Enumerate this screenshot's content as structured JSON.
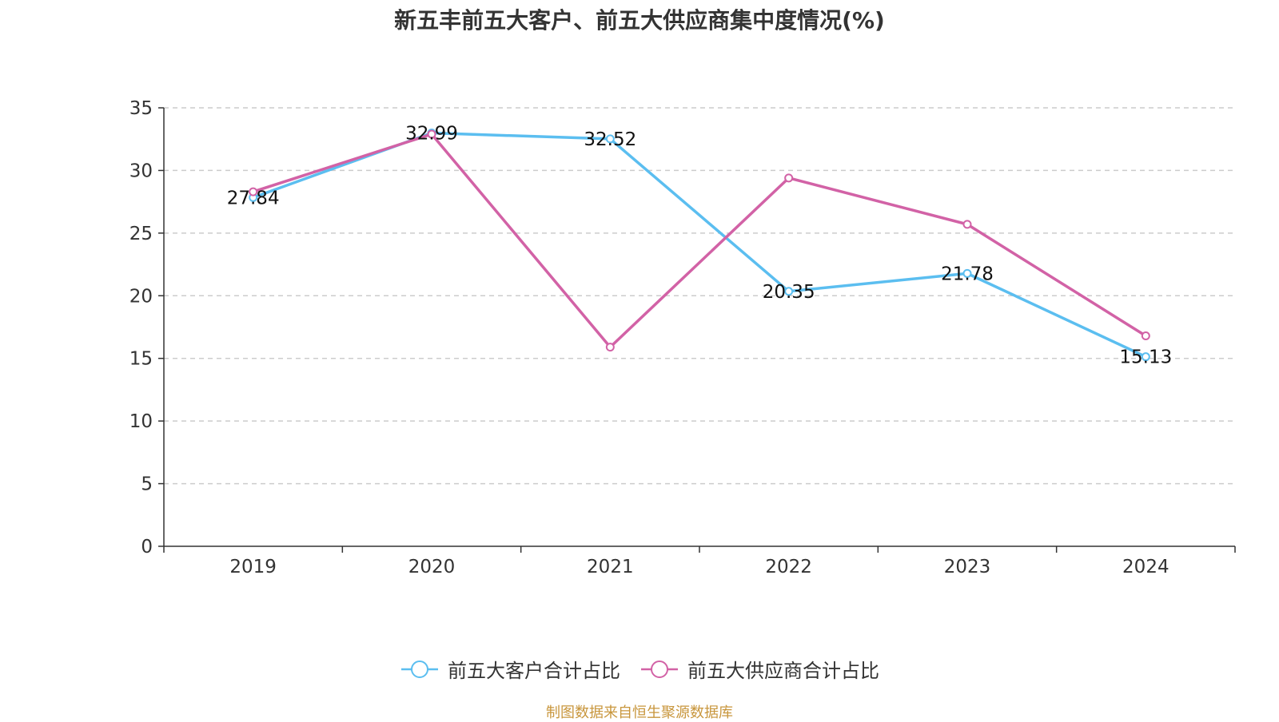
{
  "title": "新五丰前五大客户、前五大供应商集中度情况(%)",
  "source": "制图数据来自恒生聚源数据库",
  "chart_data": {
    "type": "line",
    "title": "新五丰前五大客户、前五大供应商集中度情况(%)",
    "categories": [
      "2019",
      "2020",
      "2021",
      "2022",
      "2023",
      "2024"
    ],
    "ylim": [
      0,
      35
    ],
    "yticks": [
      0,
      5,
      10,
      15,
      20,
      25,
      30,
      35
    ],
    "grid": true,
    "legend_position": "bottom",
    "series": [
      {
        "name": "前五大客户合计占比",
        "color": "#5bbef0",
        "values": [
          27.84,
          32.99,
          32.52,
          20.35,
          21.78,
          15.13
        ],
        "labels": [
          "27.84",
          "32.99",
          "32.52",
          "20.35",
          "21.78",
          "15.13"
        ]
      },
      {
        "name": "前五大供应商合计占比",
        "color": "#d262a6",
        "values": [
          28.3,
          32.9,
          15.9,
          29.4,
          25.7,
          16.8
        ],
        "labels": []
      }
    ]
  }
}
